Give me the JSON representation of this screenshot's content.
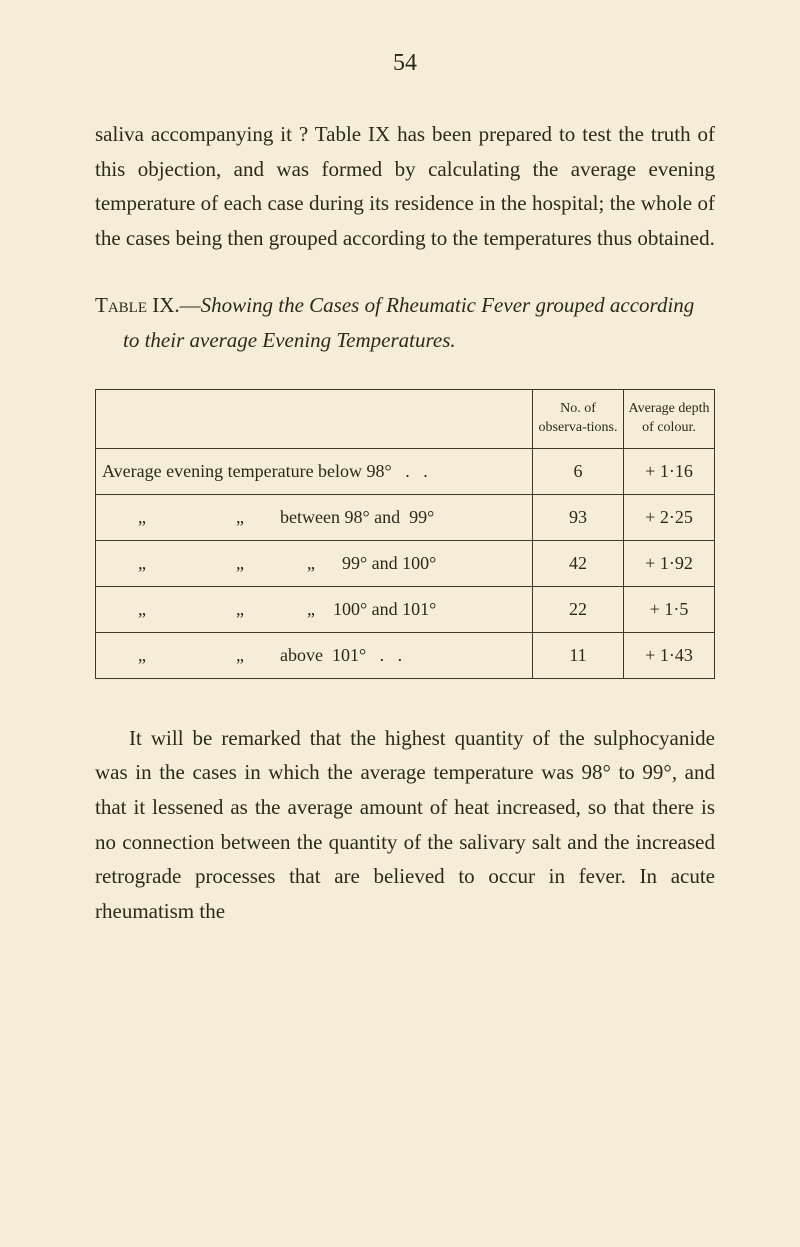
{
  "page_number": "54",
  "paragraph1": "saliva accompanying it ? Table IX has been prepared to test the truth of this objection, and was formed by calculating the average evening temperature of each case during its residence in the hospital; the whole of the cases being then grouped according to the temperatures thus obtained.",
  "table_caption_lead": "Table",
  "table_caption_num": " IX.—",
  "table_caption_italic": "Showing the Cases of Rheumatic Fever grouped according to their average Evening Temperatures.",
  "table": {
    "headers": {
      "blank": "",
      "observations": "No. of observa-tions.",
      "average_depth": "Average depth of colour."
    },
    "rows": [
      {
        "label": "Average evening temperature below 98°   .   .",
        "obs": "6",
        "depth": "+ 1·16"
      },
      {
        "label": "        „                    „        between 98° and  99°",
        "obs": "93",
        "depth": "+ 2·25"
      },
      {
        "label": "        „                    „              „      99° and 100°",
        "obs": "42",
        "depth": "+ 1·92"
      },
      {
        "label": "        „                    „              „    100° and 101°",
        "obs": "22",
        "depth": "+ 1·5"
      },
      {
        "label": "        „                    „        above  101°   .   .",
        "obs": "11",
        "depth": "+ 1·43"
      }
    ]
  },
  "paragraph2": "It will be remarked that the highest quantity of the sulphocyanide was in the cases in which the average temperature was 98° to 99°, and that it lessened as the average amount of heat increased, so that there is no connection between the quantity of the salivary salt and the increased retrograde processes that are believed to occur in fever. In acute rheumatism the",
  "colors": {
    "background": "#f5edd5",
    "text": "#2a2a1a",
    "border": "#3a3a2a"
  },
  "typography": {
    "body_fontsize": 21,
    "table_fontsize": 18,
    "header_fontsize": 14,
    "page_number_fontsize": 24,
    "line_height": 1.65
  }
}
